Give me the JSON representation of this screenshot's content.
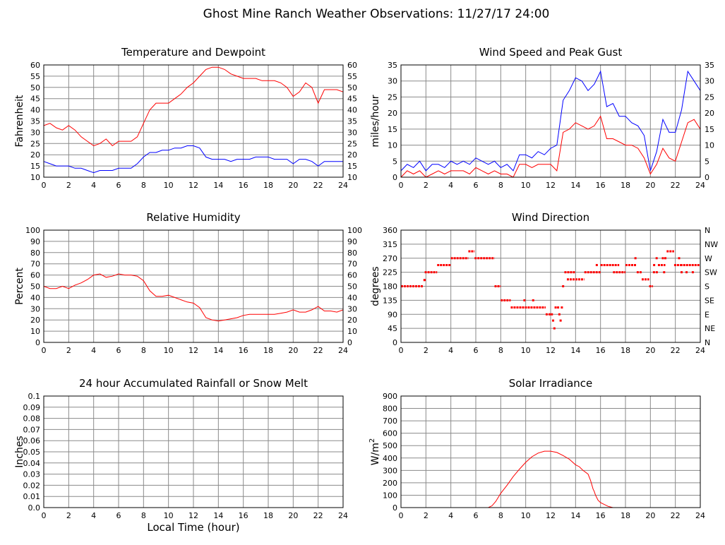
{
  "page_title": "Ghost Mine Ranch Weather Observations: 11/27/17 24:00",
  "xlabel_bottom": "Local Time (hour)",
  "colors": {
    "red": "#ff0000",
    "blue": "#0000ff",
    "grid": "#8a8a8a"
  },
  "chart_data": [
    {
      "id": "temp",
      "type": "line",
      "title": "Temperature and Dewpoint",
      "xlabel": "",
      "ylabel": "Fahrenheit",
      "xlim": [
        0,
        24
      ],
      "ylim": [
        10,
        60
      ],
      "xticks": [
        0,
        2,
        4,
        6,
        8,
        10,
        12,
        14,
        16,
        18,
        20,
        22,
        24
      ],
      "yticks": [
        10,
        15,
        20,
        25,
        30,
        35,
        40,
        45,
        50,
        55,
        60
      ],
      "right_ticks": [
        "10",
        "15",
        "20",
        "25",
        "30",
        "35",
        "40",
        "45",
        "50",
        "55",
        "60"
      ],
      "grid": true,
      "series": [
        {
          "color": "#ff0000",
          "x": [
            0,
            0.5,
            1,
            1.5,
            2,
            2.5,
            3,
            3.5,
            4,
            4.5,
            5,
            5.5,
            6,
            6.5,
            7,
            7.5,
            8,
            8.5,
            9,
            9.5,
            10,
            10.5,
            11,
            11.5,
            12,
            12.5,
            13,
            13.5,
            14,
            14.5,
            15,
            15.5,
            16,
            16.5,
            17,
            17.5,
            18,
            18.5,
            19,
            19.5,
            20,
            20.5,
            21,
            21.5,
            22,
            22.5,
            23,
            23.5,
            24
          ],
          "y": [
            33,
            34,
            32,
            31,
            33,
            31,
            28,
            26,
            24,
            25,
            27,
            24,
            26,
            26,
            26,
            28,
            34,
            40,
            43,
            43,
            43,
            45,
            47,
            50,
            52,
            55,
            58,
            59,
            59,
            58,
            56,
            55,
            54,
            54,
            54,
            53,
            53,
            53,
            52,
            50,
            46,
            48,
            52,
            50,
            43,
            49,
            49,
            49,
            48
          ]
        },
        {
          "color": "#0000ff",
          "x": [
            0,
            0.5,
            1,
            1.5,
            2,
            2.5,
            3,
            3.5,
            4,
            4.5,
            5,
            5.5,
            6,
            6.5,
            7,
            7.5,
            8,
            8.5,
            9,
            9.5,
            10,
            10.5,
            11,
            11.5,
            12,
            12.5,
            13,
            13.5,
            14,
            14.5,
            15,
            15.5,
            16,
            16.5,
            17,
            17.5,
            18,
            18.5,
            19,
            19.5,
            20,
            20.5,
            21,
            21.5,
            22,
            22.5,
            23,
            23.5,
            24
          ],
          "y": [
            17,
            16,
            15,
            15,
            15,
            14,
            14,
            13,
            12,
            13,
            13,
            13,
            14,
            14,
            14,
            16,
            19,
            21,
            21,
            22,
            22,
            23,
            23,
            24,
            24,
            23,
            19,
            18,
            18,
            18,
            17,
            18,
            18,
            18,
            19,
            19,
            19,
            18,
            18,
            18,
            16,
            18,
            18,
            17,
            15,
            17,
            17,
            17,
            17
          ]
        }
      ]
    },
    {
      "id": "wind",
      "type": "line",
      "title": "Wind Speed and Peak Gust",
      "xlabel": "",
      "ylabel": "miles/hour",
      "xlim": [
        0,
        24
      ],
      "ylim": [
        0,
        35
      ],
      "xticks": [
        0,
        2,
        4,
        6,
        8,
        10,
        12,
        14,
        16,
        18,
        20,
        22,
        24
      ],
      "yticks": [
        0,
        5,
        10,
        15,
        20,
        25,
        30,
        35
      ],
      "right_ticks": [
        "0",
        "5",
        "10",
        "15",
        "20",
        "25",
        "30",
        "35"
      ],
      "grid": true,
      "series": [
        {
          "color": "#0000ff",
          "x": [
            0,
            0.5,
            1,
            1.5,
            2,
            2.5,
            3,
            3.5,
            4,
            4.5,
            5,
            5.5,
            6,
            6.5,
            7,
            7.5,
            8,
            8.5,
            9,
            9.5,
            10,
            10.5,
            11,
            11.5,
            12,
            12.5,
            13,
            13.5,
            14,
            14.5,
            15,
            15.5,
            16,
            16.5,
            17,
            17.5,
            18,
            18.5,
            19,
            19.5,
            20,
            20.5,
            21,
            21.5,
            22,
            22.5,
            23,
            23.5,
            24
          ],
          "y": [
            2,
            4,
            3,
            5,
            2,
            4,
            4,
            3,
            5,
            4,
            5,
            4,
            6,
            5,
            4,
            5,
            3,
            4,
            2,
            7,
            7,
            6,
            8,
            7,
            9,
            10,
            24,
            27,
            31,
            30,
            27,
            29,
            33,
            22,
            23,
            19,
            19,
            17,
            16,
            13,
            2,
            8,
            18,
            14,
            14,
            21,
            33,
            30,
            27
          ]
        },
        {
          "color": "#ff0000",
          "x": [
            0,
            0.5,
            1,
            1.5,
            2,
            2.5,
            3,
            3.5,
            4,
            4.5,
            5,
            5.5,
            6,
            6.5,
            7,
            7.5,
            8,
            8.5,
            9,
            9.5,
            10,
            10.5,
            11,
            11.5,
            12,
            12.5,
            13,
            13.5,
            14,
            14.5,
            15,
            15.5,
            16,
            16.5,
            17,
            17.5,
            18,
            18.5,
            19,
            19.5,
            20,
            20.5,
            21,
            21.5,
            22,
            22.5,
            23,
            23.5,
            24
          ],
          "y": [
            0,
            2,
            1,
            2,
            0,
            1,
            2,
            1,
            2,
            2,
            2,
            1,
            3,
            2,
            1,
            2,
            1,
            1,
            0,
            4,
            4,
            3,
            4,
            4,
            4,
            2,
            14,
            15,
            17,
            16,
            15,
            16,
            19,
            12,
            12,
            11,
            10,
            10,
            9,
            6,
            1,
            4,
            9,
            6,
            5,
            11,
            17,
            18,
            15
          ]
        }
      ]
    },
    {
      "id": "rh",
      "type": "line",
      "title": "Relative Humidity",
      "xlabel": "",
      "ylabel": "Percent",
      "xlim": [
        0,
        24
      ],
      "ylim": [
        0,
        100
      ],
      "xticks": [
        0,
        2,
        4,
        6,
        8,
        10,
        12,
        14,
        16,
        18,
        20,
        22,
        24
      ],
      "yticks": [
        0,
        10,
        20,
        30,
        40,
        50,
        60,
        70,
        80,
        90,
        100
      ],
      "right_ticks": [
        "0",
        "10",
        "20",
        "30",
        "40",
        "50",
        "60",
        "70",
        "80",
        "90",
        "100"
      ],
      "grid": true,
      "series": [
        {
          "color": "#ff0000",
          "x": [
            0,
            0.5,
            1,
            1.5,
            2,
            2.5,
            3,
            3.5,
            4,
            4.5,
            5,
            5.5,
            6,
            6.5,
            7,
            7.5,
            8,
            8.5,
            9,
            9.5,
            10,
            10.5,
            11,
            11.5,
            12,
            12.5,
            13,
            13.5,
            14,
            14.5,
            15,
            15.5,
            16,
            16.5,
            17,
            17.5,
            18,
            18.5,
            19,
            19.5,
            20,
            20.5,
            21,
            21.5,
            22,
            22.5,
            23,
            23.5,
            24
          ],
          "y": [
            50,
            48,
            48,
            50,
            48,
            51,
            53,
            56,
            60,
            61,
            58,
            59,
            61,
            60,
            60,
            59,
            55,
            46,
            41,
            41,
            42,
            40,
            38,
            36,
            35,
            31,
            22,
            20,
            19,
            20,
            21,
            22,
            24,
            25,
            25,
            25,
            25,
            25,
            26,
            27,
            29,
            27,
            27,
            29,
            32,
            28,
            28,
            27,
            29
          ]
        }
      ]
    },
    {
      "id": "dir",
      "type": "scatter",
      "title": "Wind Direction",
      "xlabel": "",
      "ylabel": "degrees",
      "xlim": [
        0,
        24
      ],
      "ylim": [
        0,
        360
      ],
      "xticks": [
        0,
        2,
        4,
        6,
        8,
        10,
        12,
        14,
        16,
        18,
        20,
        22,
        24
      ],
      "yticks": [
        0,
        45,
        90,
        135,
        180,
        225,
        270,
        315,
        360
      ],
      "right_ticks": [
        "N",
        "NE",
        "E",
        "SE",
        "S",
        "SW",
        "W",
        "NW",
        "N"
      ],
      "grid": true,
      "segments": [
        {
          "x0": 0,
          "x1": 1.8,
          "y": 180
        },
        {
          "x0": 1.8,
          "x1": 1.9,
          "y": 200
        },
        {
          "x0": 1.9,
          "x1": 2.9,
          "y": 225
        },
        {
          "x0": 2.9,
          "x1": 4.0,
          "y": 248
        },
        {
          "x0": 4.0,
          "x1": 5.4,
          "y": 270
        },
        {
          "x0": 5.4,
          "x1": 5.9,
          "y": 292
        },
        {
          "x0": 5.9,
          "x1": 7.5,
          "y": 270
        },
        {
          "x0": 7.5,
          "x1": 8.0,
          "y": 180
        },
        {
          "x0": 8.0,
          "x1": 8.8,
          "y": 135
        },
        {
          "x0": 8.8,
          "x1": 11.6,
          "y": 112
        },
        {
          "x0": 11.6,
          "x1": 12.0,
          "y": 90
        },
        {
          "x0": 13.1,
          "x1": 14.0,
          "y": 225
        },
        {
          "x0": 13.3,
          "x1": 14.7,
          "y": 202
        },
        {
          "x0": 14.7,
          "x1": 16.0,
          "y": 225
        },
        {
          "x0": 16.0,
          "x1": 17.5,
          "y": 248
        },
        {
          "x0": 17.0,
          "x1": 18.0,
          "y": 225
        },
        {
          "x0": 18.0,
          "x1": 18.9,
          "y": 248
        },
        {
          "x0": 18.9,
          "x1": 19.3,
          "y": 225
        },
        {
          "x0": 19.3,
          "x1": 19.9,
          "y": 202
        },
        {
          "x0": 19.9,
          "x1": 20.2,
          "y": 180
        },
        {
          "x0": 20.2,
          "x1": 20.6,
          "y": 225
        },
        {
          "x0": 20.6,
          "x1": 21.2,
          "y": 248
        },
        {
          "x0": 21.3,
          "x1": 21.9,
          "y": 292
        },
        {
          "x0": 21.9,
          "x1": 22.4,
          "y": 248
        },
        {
          "x0": 22.4,
          "x1": 24.0,
          "y": 248
        }
      ],
      "points": [
        {
          "x": 1.9,
          "y": 200
        },
        {
          "x": 9.9,
          "y": 135
        },
        {
          "x": 10.6,
          "y": 135
        },
        {
          "x": 12.1,
          "y": 90
        },
        {
          "x": 12.2,
          "y": 70
        },
        {
          "x": 12.3,
          "y": 45
        },
        {
          "x": 12.4,
          "y": 112
        },
        {
          "x": 12.6,
          "y": 112
        },
        {
          "x": 12.7,
          "y": 90
        },
        {
          "x": 12.8,
          "y": 70
        },
        {
          "x": 12.9,
          "y": 112
        },
        {
          "x": 13.0,
          "y": 180
        },
        {
          "x": 15.7,
          "y": 248
        },
        {
          "x": 18.8,
          "y": 270
        },
        {
          "x": 20.3,
          "y": 248
        },
        {
          "x": 20.5,
          "y": 270
        },
        {
          "x": 21.0,
          "y": 270
        },
        {
          "x": 21.2,
          "y": 270
        },
        {
          "x": 21.1,
          "y": 225
        },
        {
          "x": 22.5,
          "y": 225
        },
        {
          "x": 22.9,
          "y": 225
        },
        {
          "x": 23.4,
          "y": 225
        },
        {
          "x": 22.3,
          "y": 270
        }
      ]
    },
    {
      "id": "rain",
      "type": "line",
      "title": "24 hour Accumulated Rainfall or Snow Melt",
      "xlabel": "Local Time (hour)",
      "ylabel": "Inches",
      "xlim": [
        0,
        24
      ],
      "ylim": [
        0,
        0.1
      ],
      "xticks": [
        0,
        2,
        4,
        6,
        8,
        10,
        12,
        14,
        16,
        18,
        20,
        22,
        24
      ],
      "yticks": [
        0,
        0.01,
        0.02,
        0.03,
        0.04,
        0.05,
        0.06,
        0.07,
        0.08,
        0.09,
        0.1
      ],
      "ytick_labels": [
        "0.0",
        "0.01",
        "0.02",
        "0.03",
        "0.04",
        "0.05",
        "0.06",
        "0.07",
        "0.08",
        "0.09",
        "0.1"
      ],
      "grid": true,
      "series": [
        {
          "color": "#ff0000",
          "x": [
            0,
            24
          ],
          "y": [
            0,
            0
          ]
        }
      ]
    },
    {
      "id": "solar",
      "type": "line",
      "title": "Solar Irradiance",
      "xlabel": "",
      "ylabel": "W/m",
      "ylabel_sup": "2",
      "xlim": [
        0,
        24
      ],
      "ylim": [
        0,
        900
      ],
      "xticks": [
        0,
        2,
        4,
        6,
        8,
        10,
        12,
        14,
        16,
        18,
        20,
        22,
        24
      ],
      "yticks": [
        0,
        100,
        200,
        300,
        400,
        500,
        600,
        700,
        800,
        900
      ],
      "grid": true,
      "series": [
        {
          "color": "#ff0000",
          "x": [
            0,
            7.0,
            7.3,
            7.6,
            8,
            8.5,
            9,
            9.5,
            10,
            10.5,
            11,
            11.5,
            12,
            12.5,
            13,
            13.5,
            14,
            14.3,
            14.6,
            15,
            15.2,
            15.4,
            15.5,
            15.6,
            15.8,
            16,
            16.3,
            16.6,
            17,
            24
          ],
          "y": [
            0,
            0,
            15,
            50,
            115,
            180,
            250,
            310,
            365,
            410,
            440,
            455,
            455,
            445,
            420,
            390,
            345,
            330,
            300,
            270,
            220,
            150,
            130,
            100,
            60,
            40,
            25,
            10,
            0,
            0
          ]
        }
      ]
    }
  ]
}
